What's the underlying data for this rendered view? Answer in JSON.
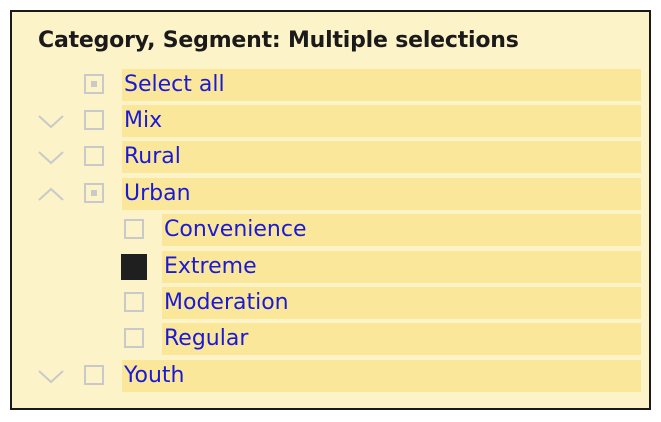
{
  "slicer": {
    "title": "Category, Segment: Multiple selections",
    "items": [
      {
        "label": "Select all",
        "level": 0,
        "state": "partial",
        "expander": "none"
      },
      {
        "label": "Mix",
        "level": 0,
        "state": "unchecked",
        "expander": "collapsed"
      },
      {
        "label": "Rural",
        "level": 0,
        "state": "unchecked",
        "expander": "collapsed"
      },
      {
        "label": "Urban",
        "level": 0,
        "state": "partial",
        "expander": "expanded"
      },
      {
        "label": "Convenience",
        "level": 1,
        "state": "unchecked",
        "expander": "none"
      },
      {
        "label": "Extreme",
        "level": 1,
        "state": "checked",
        "expander": "none"
      },
      {
        "label": "Moderation",
        "level": 1,
        "state": "unchecked",
        "expander": "none"
      },
      {
        "label": "Regular",
        "level": 1,
        "state": "unchecked",
        "expander": "none"
      },
      {
        "label": "Youth",
        "level": 0,
        "state": "unchecked",
        "expander": "collapsed"
      }
    ]
  },
  "colors": {
    "panel_background": "#fdf3c8",
    "item_highlight": "#fbe79a",
    "label_text": "#1a1ad6",
    "checkbox_border": "#c9c9c9",
    "checkbox_checked": "#1f1f1f"
  }
}
